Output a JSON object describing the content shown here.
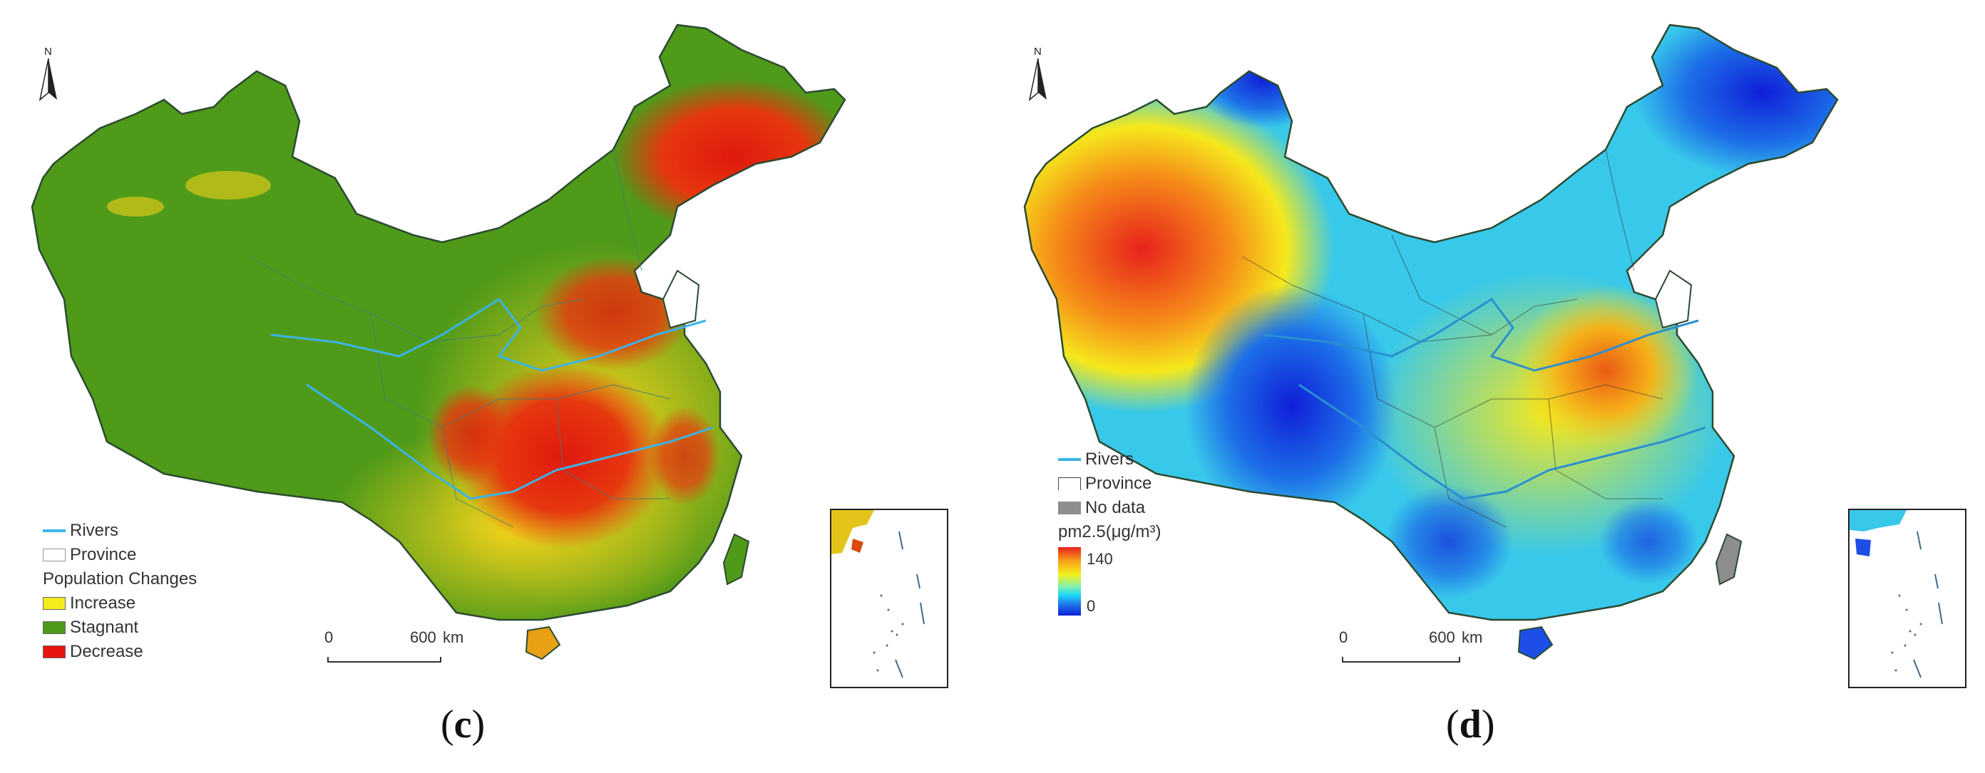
{
  "panels": [
    {
      "north_label": "N",
      "legend": {
        "rivers": "Rivers",
        "province": "Province",
        "heading": "Population Changes",
        "classes": [
          "Increase",
          "Stagnant",
          "Decrease"
        ]
      },
      "scale": {
        "start": "0",
        "end": "600",
        "unit": "km"
      },
      "caption": {
        "open": "(",
        "letter": "c",
        "close": ")"
      },
      "colors": {
        "increase": "#f5ec1c",
        "stagnant": "#4f9a19",
        "decrease": "#e8140d",
        "rivers": "#3bb4e8"
      }
    },
    {
      "north_label": "N",
      "legend": {
        "rivers": "Rivers",
        "province": "Province",
        "no_data": "No data",
        "ramp_title": "pm2.5(μg/m³)",
        "ramp_max": "140",
        "ramp_min": "0"
      },
      "scale": {
        "start": "0",
        "end": "600",
        "unit": "km"
      },
      "caption": {
        "open": "(",
        "letter": "d",
        "close": ")"
      },
      "colors": {
        "high": "#e8221c",
        "mid": "#f5f01c",
        "low": "#0f1fd8",
        "no_data": "#8e8e8e",
        "rivers": "#3bb4e8"
      }
    }
  ]
}
